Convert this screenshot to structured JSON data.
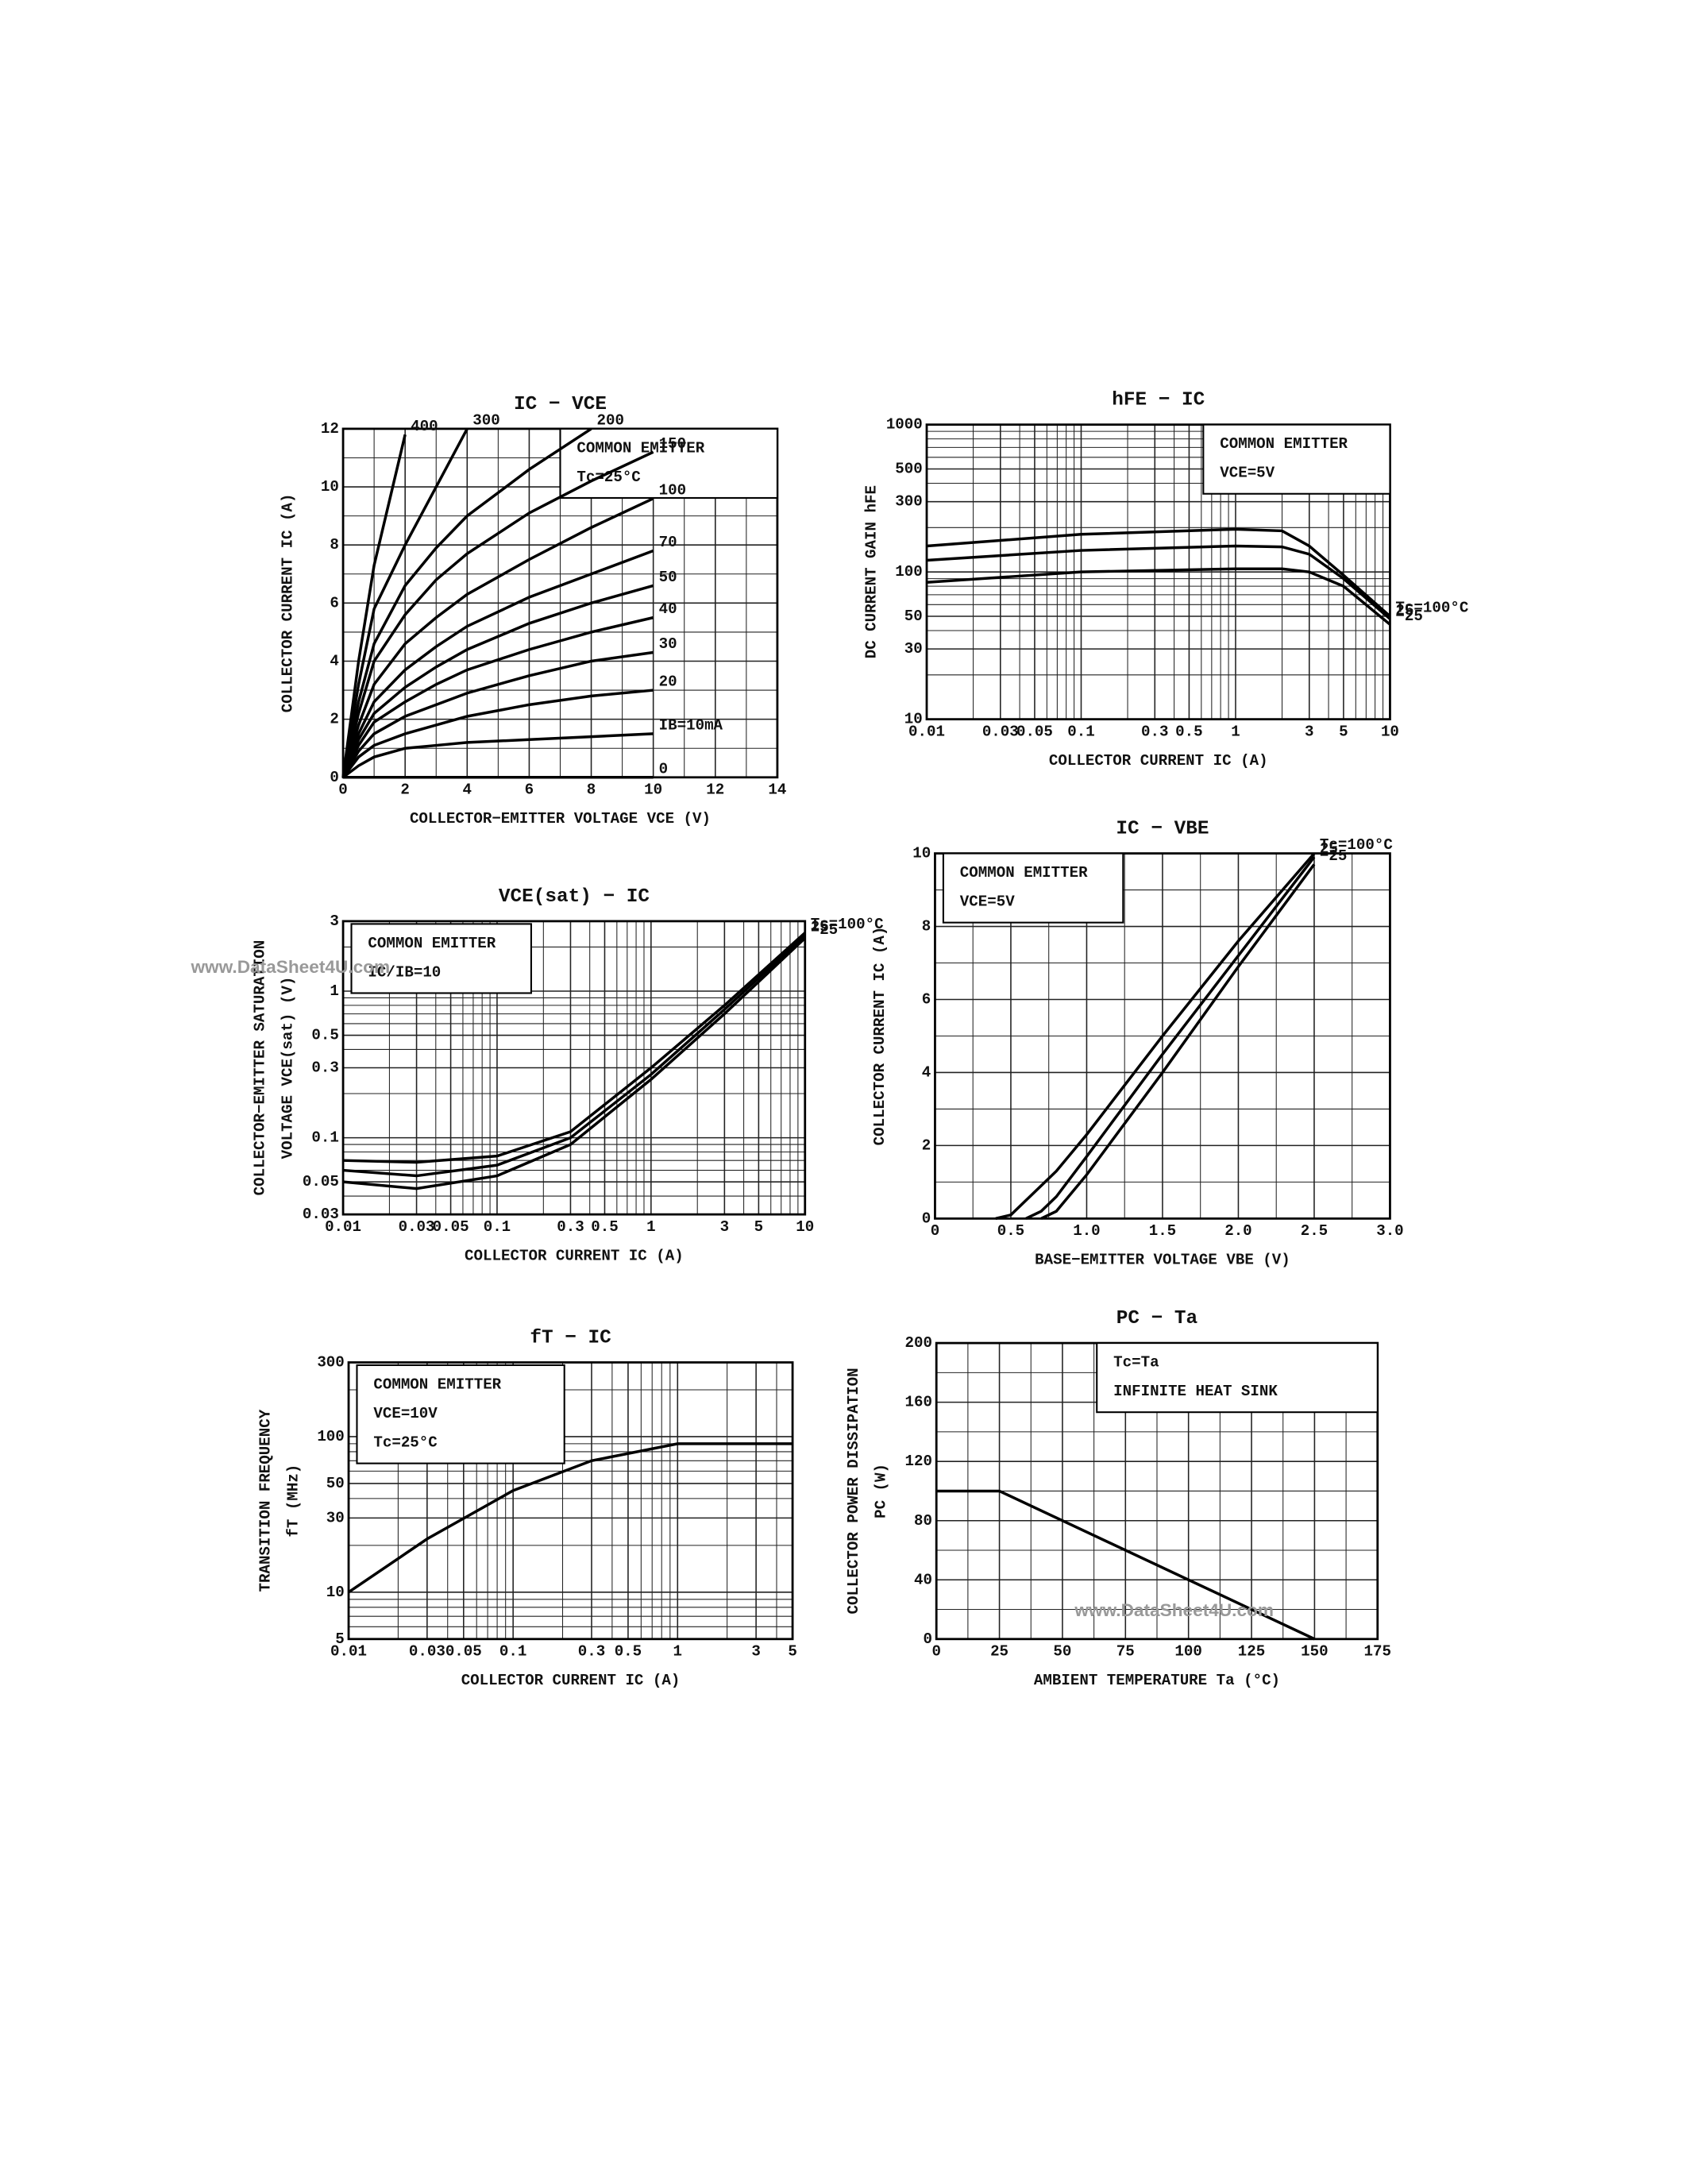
{
  "chart_data": [
    {
      "type": "line",
      "title": "IC − VCE",
      "xlabel": "COLLECTOR−EMITTER VOLTAGE VCE (V)",
      "ylabel": [
        "COLLECTOR CURRENT  IC  (A)"
      ],
      "annotations": [
        "COMMON EMITTER",
        "Tc=25°C"
      ],
      "xscale": "linear",
      "yscale": "linear",
      "xlim": [
        0,
        14
      ],
      "ylim": [
        0,
        12
      ],
      "xticks": [
        0,
        2,
        4,
        6,
        8,
        10,
        12,
        14
      ],
      "yticks": [
        0,
        2,
        4,
        6,
        8,
        10,
        12
      ],
      "grid": true,
      "minor_grid": 2,
      "x": [
        0,
        0.5,
        1,
        2,
        3,
        4,
        6,
        8,
        10
      ],
      "series": [
        {
          "name": "400",
          "color": "#000000",
          "values": [
            0,
            4,
            7.3,
            11.8,
            null,
            null,
            null,
            null,
            null
          ]
        },
        {
          "name": "300",
          "color": "#000000",
          "values": [
            0,
            3.2,
            5.8,
            8,
            10,
            12,
            null,
            null,
            null
          ]
        },
        {
          "name": "200",
          "color": "#000000",
          "values": [
            0,
            2.6,
            4.6,
            6.6,
            7.9,
            9,
            10.6,
            12,
            null
          ]
        },
        {
          "name": "150",
          "color": "#000000",
          "values": [
            0,
            2.2,
            4,
            5.6,
            6.8,
            7.7,
            9.1,
            10.2,
            11.2
          ]
        },
        {
          "name": "100",
          "color": "#000000",
          "values": [
            0,
            1.8,
            3.2,
            4.6,
            5.5,
            6.3,
            7.5,
            8.6,
            9.6
          ]
        },
        {
          "name": "70",
          "color": "#000000",
          "values": [
            0,
            1.5,
            2.6,
            3.7,
            4.5,
            5.2,
            6.2,
            7,
            7.8
          ]
        },
        {
          "name": "50",
          "color": "#000000",
          "values": [
            0,
            1.3,
            2.2,
            3.1,
            3.8,
            4.4,
            5.3,
            6,
            6.6
          ]
        },
        {
          "name": "40",
          "color": "#000000",
          "values": [
            0,
            1.1,
            1.9,
            2.6,
            3.2,
            3.7,
            4.4,
            5,
            5.5
          ]
        },
        {
          "name": "30",
          "color": "#000000",
          "values": [
            0,
            0.9,
            1.5,
            2.1,
            2.5,
            2.9,
            3.5,
            4,
            4.3
          ]
        },
        {
          "name": "20",
          "color": "#000000",
          "values": [
            0,
            0.7,
            1.1,
            1.5,
            1.8,
            2.1,
            2.5,
            2.8,
            3
          ]
        },
        {
          "name": "IB=10mA",
          "color": "#000000",
          "values": [
            0,
            0.4,
            0.7,
            1,
            1.1,
            1.2,
            1.3,
            1.4,
            1.5
          ]
        },
        {
          "name": "0",
          "color": "#000000",
          "values": [
            0,
            0,
            0,
            0,
            0,
            0,
            0,
            0,
            0
          ]
        }
      ]
    },
    {
      "type": "line",
      "title": "hFE − IC",
      "xlabel": "COLLECTOR CURRENT  IC  (A)",
      "ylabel": [
        "DC CURRENT GAIN  hFE"
      ],
      "annotations": [
        "COMMON EMITTER",
        "VCE=5V"
      ],
      "xscale": "log",
      "yscale": "log",
      "xlim": [
        0.01,
        10
      ],
      "ylim": [
        10,
        1000
      ],
      "xticks": [
        0.01,
        0.03,
        0.05,
        0.1,
        0.3,
        0.5,
        1,
        3,
        5,
        10
      ],
      "yticks": [
        10,
        30,
        50,
        100,
        300,
        500,
        1000
      ],
      "grid": true,
      "x": [
        0.01,
        0.1,
        1,
        2,
        3,
        5,
        10
      ],
      "series": [
        {
          "name": "Tc=100°C",
          "color": "#000000",
          "values": [
            150,
            180,
            195,
            190,
            150,
            95,
            50
          ]
        },
        {
          "name": "25",
          "color": "#000000",
          "values": [
            120,
            140,
            150,
            148,
            132,
            90,
            48
          ]
        },
        {
          "name": "−25",
          "color": "#000000",
          "values": [
            85,
            100,
            105,
            105,
            100,
            80,
            44
          ]
        }
      ]
    },
    {
      "type": "line",
      "title": "VCE(sat) − IC",
      "xlabel": "COLLECTOR CURRENT  IC  (A)",
      "ylabel": [
        "COLLECTOR−EMITTER SATURATION",
        "VOLTAGE  VCE(sat)  (V)"
      ],
      "annotations": [
        "COMMON EMITTER",
        "IC/IB=10"
      ],
      "xscale": "log",
      "yscale": "log",
      "xlim": [
        0.01,
        10
      ],
      "ylim": [
        0.03,
        3
      ],
      "xticks": [
        0.01,
        0.03,
        0.05,
        0.1,
        0.3,
        0.5,
        1,
        3,
        5,
        10
      ],
      "yticks": [
        0.03,
        0.05,
        0.1,
        0.3,
        0.5,
        1,
        3
      ],
      "grid": true,
      "x": [
        0.01,
        0.03,
        0.1,
        0.3,
        1,
        3,
        10
      ],
      "series": [
        {
          "name": "Tc=100°C",
          "color": "#000000",
          "values": [
            0.07,
            0.068,
            0.075,
            0.11,
            0.3,
            0.8,
            2.5
          ]
        },
        {
          "name": "25",
          "color": "#000000",
          "values": [
            0.06,
            0.055,
            0.065,
            0.1,
            0.27,
            0.75,
            2.4
          ]
        },
        {
          "name": "−25",
          "color": "#000000",
          "values": [
            0.05,
            0.045,
            0.055,
            0.09,
            0.25,
            0.7,
            2.3
          ]
        }
      ]
    },
    {
      "type": "line",
      "title": "IC − VBE",
      "xlabel": "BASE−EMITTER VOLTAGE  VBE  (V)",
      "ylabel": [
        "COLLECTOR CURRENT  IC  (A)"
      ],
      "annotations": [
        "COMMON EMITTER",
        "VCE=5V"
      ],
      "xscale": "linear",
      "yscale": "linear",
      "xlim": [
        0,
        3
      ],
      "ylim": [
        0,
        10
      ],
      "xticks": [
        0,
        0.5,
        {
          "value": 1,
          "label": "1.0"
        },
        1.5,
        {
          "value": 2,
          "label": "2.0"
        },
        2.5,
        {
          "value": 3,
          "label": "3.0"
        }
      ],
      "yticks": [
        0,
        2,
        4,
        6,
        8,
        10
      ],
      "grid": true,
      "minor_grid": 2,
      "x": [
        0.4,
        0.5,
        0.6,
        0.7,
        0.8,
        1,
        1.5,
        2,
        2.5
      ],
      "series": [
        {
          "name": "Tc=100°C",
          "color": "#000000",
          "values": [
            0,
            0.1,
            0.5,
            0.9,
            1.3,
            2.3,
            5,
            7.6,
            10
          ]
        },
        {
          "name": "25",
          "color": "#000000",
          "values": [
            null,
            null,
            0,
            0.2,
            0.6,
            1.7,
            4.5,
            7.2,
            9.9
          ]
        },
        {
          "name": "−25",
          "color": "#000000",
          "values": [
            null,
            null,
            null,
            0,
            0.2,
            1.2,
            4,
            6.9,
            9.7
          ]
        }
      ]
    },
    {
      "type": "line",
      "title": "fT − IC",
      "xlabel": "COLLECTOR CURRENT  IC  (A)",
      "ylabel": [
        "TRANSITION FREQUENCY",
        "fT  (MHz)"
      ],
      "annotations": [
        "COMMON EMITTER",
        "VCE=10V",
        "Tc=25°C"
      ],
      "xscale": "log",
      "yscale": "log",
      "xlim": [
        0.01,
        5
      ],
      "ylim": [
        5,
        300
      ],
      "xticks": [
        0.01,
        0.03,
        0.05,
        0.1,
        0.3,
        0.5,
        1,
        3,
        5
      ],
      "yticks": [
        5,
        10,
        30,
        50,
        100,
        300
      ],
      "grid": true,
      "x": [
        0.01,
        0.03,
        0.1,
        0.3,
        1,
        3,
        5
      ],
      "series": [
        {
          "name": "fT",
          "color": "#000000",
          "values": [
            10,
            22,
            45,
            70,
            90,
            90,
            90
          ]
        }
      ]
    },
    {
      "type": "line",
      "title": "PC − Ta",
      "xlabel": "AMBIENT TEMPERATURE  Ta  (°C)",
      "ylabel": [
        "COLLECTOR POWER DISSIPATION",
        "PC  (W)"
      ],
      "annotations": [
        "Tc=Ta",
        "INFINITE HEAT SINK"
      ],
      "xscale": "linear",
      "yscale": "linear",
      "xlim": [
        0,
        175
      ],
      "ylim": [
        0,
        200
      ],
      "xticks": [
        0,
        25,
        50,
        75,
        100,
        125,
        150,
        175
      ],
      "yticks": [
        0,
        40,
        80,
        120,
        160,
        200
      ],
      "grid": true,
      "minor_grid": 2,
      "x": [
        0,
        25,
        150
      ],
      "series": [
        {
          "name": "PC",
          "color": "#000000",
          "values": [
            100,
            100,
            0
          ]
        }
      ]
    }
  ],
  "watermarks": [
    "www.DataSheet4U.com",
    "www.DataSheet4U.com"
  ]
}
